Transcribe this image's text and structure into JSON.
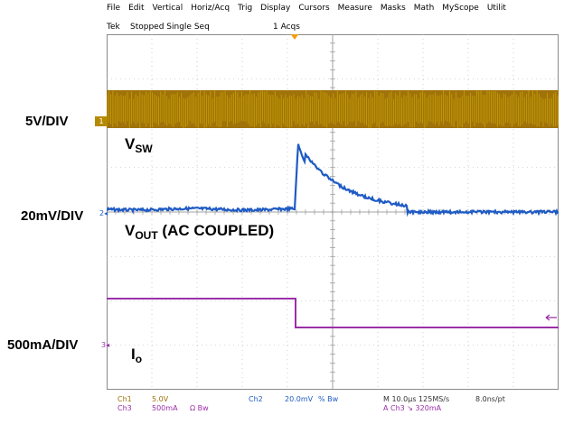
{
  "menu": {
    "items": [
      "File",
      "Edit",
      "Vertical",
      "Horiz/Acq",
      "Trig",
      "Display",
      "Cursors",
      "Measure",
      "Masks",
      "Math",
      "MyScope",
      "Utilit"
    ]
  },
  "status": {
    "brand": "Tek",
    "state": "Stopped  Single Seq",
    "acqs": "1 Acqs"
  },
  "labels": {
    "ch1_scale": "5V/DIV",
    "ch2_scale": "20mV/DIV",
    "ch3_scale": "500mA/DIV",
    "vsw_main": "V",
    "vsw_sub": "SW",
    "vout_main": "V",
    "vout_sub": "OUT",
    "vout_suffix": " (AC COUPLED)",
    "io_main": "I",
    "io_sub": "o"
  },
  "markers": {
    "ch1": "1",
    "ch2": "2",
    "ch3": "3"
  },
  "readout": {
    "ch1_name": "Ch1",
    "ch1_scale": "5.0V",
    "ch3_name": "Ch3",
    "ch3_scale": "500mA",
    "ch3_flags": "Ω  Bw",
    "ch2_name": "Ch2",
    "ch2_scale": "20.0mV",
    "ch2_flags": "%  Bw",
    "timebase": "M 10.0µs 125MS/s",
    "resolution": "8.0ns/pt",
    "trigger": "A  Ch3  ↘  320mA"
  },
  "colors": {
    "ch1": "#a0720a",
    "ch1_light": "#c9a400",
    "ch2": "#1f5bc4",
    "ch3": "#9b2fa8",
    "grid": "#8a8a8a",
    "trigger": "#f39c12"
  },
  "icons": [
    "trigger-position-icon",
    "ch1-marker-icon",
    "ch2-marker-icon",
    "ch3-marker-icon",
    "trigger-level-arrow-icon"
  ]
}
